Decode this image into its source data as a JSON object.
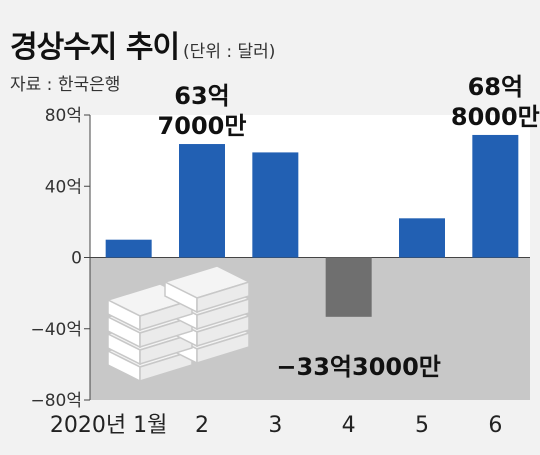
{
  "header": {
    "title": "경상수지 추이",
    "unit": "(단위 : 달러)",
    "source": "자료 : 한국은행"
  },
  "chart_data": {
    "type": "bar",
    "title": "경상수지 추이",
    "categories": [
      "2020년 1월",
      "2",
      "3",
      "4",
      "5",
      "6"
    ],
    "values": [
      10,
      63.7,
      59,
      -33.3,
      22,
      68.8
    ],
    "yticks": [
      "80억",
      "40억",
      "0",
      "−40억",
      "−80억"
    ],
    "ylim": [
      -80,
      80
    ],
    "annotations": [
      {
        "category_index": 1,
        "lines": [
          "63억",
          "7000만"
        ]
      },
      {
        "category_index": 3,
        "lines": [
          "−33억3000만"
        ]
      },
      {
        "category_index": 5,
        "lines": [
          "68억",
          "8000만"
        ]
      }
    ],
    "colors": {
      "positive": "#2260b3",
      "negative": "#6f6f6f",
      "negative_region": "#c8c8c8",
      "plot_bg": "#ffffff"
    }
  }
}
